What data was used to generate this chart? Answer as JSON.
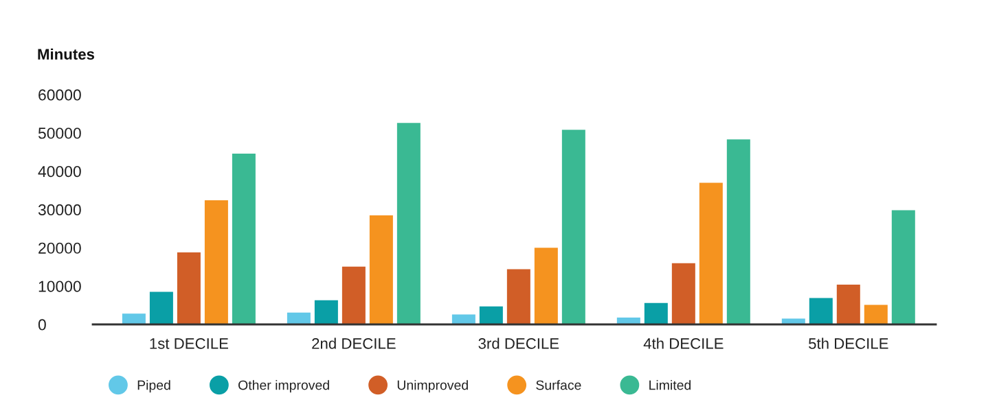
{
  "chart_data": {
    "type": "bar",
    "ylabel": "Minutes",
    "categories": [
      "1st DECILE",
      "2nd DECILE",
      "3rd DECILE",
      "4th DECILE",
      "5th DECILE"
    ],
    "series": [
      {
        "name": "Piped",
        "color": "#62c8e8",
        "values": [
          2800,
          3100,
          2600,
          1800,
          1500
        ]
      },
      {
        "name": "Other improved",
        "color": "#0a9fa6",
        "values": [
          8500,
          6300,
          4700,
          5600,
          6900
        ]
      },
      {
        "name": "Unimproved",
        "color": "#d15e27",
        "values": [
          18800,
          15100,
          14400,
          16000,
          10400
        ]
      },
      {
        "name": "Surface",
        "color": "#f5931f",
        "values": [
          32400,
          28500,
          20000,
          37000,
          5100
        ]
      },
      {
        "name": "Limited",
        "color": "#3ab993",
        "values": [
          44600,
          52600,
          50800,
          48300,
          29800
        ]
      }
    ],
    "ylim": [
      0,
      60000
    ],
    "yticks": [
      0,
      10000,
      20000,
      30000,
      40000,
      50000,
      60000
    ],
    "grid": false,
    "legend": "bottom"
  }
}
